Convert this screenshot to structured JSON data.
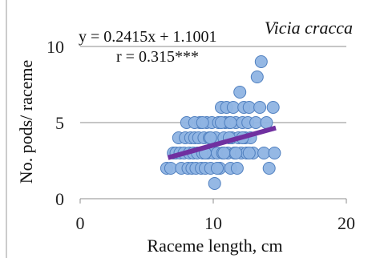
{
  "chart_data": {
    "type": "scatter",
    "title": "",
    "species_label": "Vicia cracca",
    "xlabel": "Raceme length, cm",
    "ylabel": "No. pods/ raceme",
    "xlim": [
      0,
      20
    ],
    "ylim": [
      0,
      10
    ],
    "x_ticks": [
      0,
      10,
      20
    ],
    "y_ticks": [
      0,
      5,
      10
    ],
    "grid": "horizontal",
    "equation_text": "y = 0.2415x + 1.1001",
    "r_text": "r = 0.315***",
    "trendline": {
      "slope": 0.2415,
      "intercept": 1.1001,
      "x_range": [
        6.6,
        14.7
      ]
    },
    "points": [
      [
        6.5,
        2
      ],
      [
        6.8,
        2
      ],
      [
        7.0,
        3
      ],
      [
        7.2,
        3
      ],
      [
        7.4,
        4
      ],
      [
        7.5,
        3
      ],
      [
        7.6,
        2
      ],
      [
        7.8,
        3
      ],
      [
        7.9,
        4
      ],
      [
        8.0,
        5
      ],
      [
        8.1,
        2
      ],
      [
        8.2,
        3
      ],
      [
        8.3,
        4
      ],
      [
        8.4,
        2
      ],
      [
        8.5,
        3
      ],
      [
        8.6,
        4
      ],
      [
        8.7,
        2
      ],
      [
        8.8,
        3
      ],
      [
        8.9,
        4
      ],
      [
        9.0,
        5
      ],
      [
        9.1,
        2
      ],
      [
        9.2,
        3
      ],
      [
        9.3,
        4
      ],
      [
        9.4,
        2
      ],
      [
        9.5,
        5
      ],
      [
        9.6,
        3
      ],
      [
        9.7,
        4
      ],
      [
        9.8,
        2
      ],
      [
        9.9,
        5
      ],
      [
        10.0,
        3
      ],
      [
        10.1,
        1
      ],
      [
        10.2,
        4
      ],
      [
        10.3,
        3
      ],
      [
        10.4,
        5
      ],
      [
        10.5,
        2
      ],
      [
        10.6,
        6
      ],
      [
        10.7,
        3
      ],
      [
        10.8,
        4
      ],
      [
        10.9,
        5
      ],
      [
        11.0,
        6
      ],
      [
        11.1,
        3
      ],
      [
        11.2,
        5
      ],
      [
        11.3,
        2
      ],
      [
        11.4,
        4
      ],
      [
        11.5,
        6
      ],
      [
        11.6,
        3
      ],
      [
        11.7,
        5
      ],
      [
        11.8,
        2
      ],
      [
        11.9,
        4
      ],
      [
        12.0,
        7
      ],
      [
        12.1,
        3
      ],
      [
        12.2,
        5
      ],
      [
        12.3,
        6
      ],
      [
        12.4,
        4
      ],
      [
        12.5,
        3
      ],
      [
        12.6,
        5
      ],
      [
        12.7,
        6
      ],
      [
        12.8,
        4
      ],
      [
        13.0,
        3
      ],
      [
        13.2,
        5
      ],
      [
        13.3,
        8
      ],
      [
        13.5,
        6
      ],
      [
        13.6,
        9
      ],
      [
        13.8,
        3
      ],
      [
        14.0,
        5
      ],
      [
        14.2,
        2
      ],
      [
        14.5,
        6
      ],
      [
        14.6,
        3
      ],
      [
        9.4,
        3
      ],
      [
        9.8,
        4
      ],
      [
        10.3,
        2
      ],
      [
        10.8,
        3
      ],
      [
        11.2,
        4
      ],
      [
        11.7,
        3
      ],
      [
        12.2,
        4
      ],
      [
        12.7,
        3
      ],
      [
        8.6,
        5
      ],
      [
        9.2,
        5
      ],
      [
        10.6,
        5
      ],
      [
        11.3,
        5
      ]
    ]
  },
  "colors": {
    "point_fill": "#8fb4e3",
    "point_stroke": "#4f7fbf",
    "trendline": "#7030a0",
    "grid": "#8c8c8c",
    "axis": "#8c8c8c"
  }
}
